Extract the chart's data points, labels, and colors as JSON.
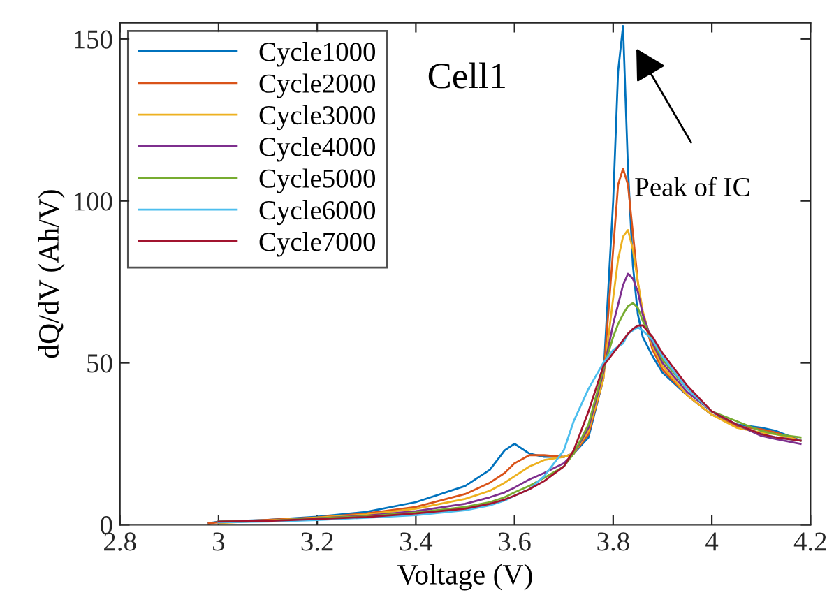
{
  "chart_data": {
    "type": "line",
    "xlabel": "Voltage (V)",
    "ylabel": "dQ/dV (Ah/V)",
    "x": [
      2.98,
      3.0,
      3.1,
      3.2,
      3.3,
      3.4,
      3.5,
      3.55,
      3.58,
      3.6,
      3.63,
      3.66,
      3.7,
      3.72,
      3.75,
      3.78,
      3.8,
      3.81,
      3.82,
      3.83,
      3.84,
      3.85,
      3.86,
      3.88,
      3.9,
      3.95,
      4.0,
      4.05,
      4.1,
      4.13,
      4.18
    ],
    "series": [
      {
        "name": "Cycle1000",
        "color": "#0072bd",
        "values": [
          0.5,
          1,
          1.5,
          2.5,
          4,
          7,
          12,
          17,
          23,
          25,
          22,
          21,
          21,
          22,
          27,
          45,
          100,
          140,
          154,
          110,
          80,
          65,
          58,
          52,
          47,
          40,
          34,
          31,
          30,
          29,
          26
        ]
      },
      {
        "name": "Cycle2000",
        "color": "#d95319",
        "values": [
          0.5,
          0.8,
          1.5,
          2.3,
          3.5,
          5.5,
          9.5,
          13,
          16,
          19,
          21.5,
          21.5,
          21,
          22,
          28,
          45,
          85,
          105,
          110,
          105,
          90,
          75,
          65,
          54,
          48,
          40,
          34,
          30.5,
          29.5,
          28.5,
          26
        ]
      },
      {
        "name": "Cycle3000",
        "color": "#edb120",
        "values": [
          null,
          0.5,
          1.3,
          2.2,
          3.2,
          5,
          8,
          10.5,
          13,
          15,
          18,
          20,
          21,
          22,
          29,
          45,
          70,
          82,
          89,
          91,
          85,
          75,
          66,
          55,
          49,
          40,
          34,
          30,
          28.5,
          28,
          26
        ]
      },
      {
        "name": "Cycle4000",
        "color": "#7e2f8e",
        "values": [
          null,
          0.8,
          1.2,
          2,
          2.8,
          4.2,
          6.5,
          8.5,
          10,
          11.5,
          14,
          16,
          19,
          22,
          30,
          47,
          62,
          68,
          74,
          77.5,
          76,
          72,
          65,
          56,
          50,
          41,
          35,
          31,
          27.5,
          26.5,
          25
        ]
      },
      {
        "name": "Cycle5000",
        "color": "#77ac30",
        "values": [
          null,
          1,
          1.2,
          2,
          2.6,
          3.8,
          5.5,
          7,
          8.5,
          10,
          12,
          14.5,
          18,
          22,
          31,
          48,
          58,
          62,
          65,
          67.5,
          68.5,
          67,
          63,
          57,
          51,
          42,
          35,
          32,
          29,
          28,
          27
        ]
      },
      {
        "name": "Cycle6000",
        "color": "#4dbeee",
        "values": [
          null,
          0.8,
          1,
          1.5,
          2.2,
          3,
          4.5,
          6,
          7.5,
          9,
          11,
          15,
          23,
          32,
          42,
          50,
          54,
          55,
          56,
          59,
          60,
          61,
          60,
          57,
          52,
          42,
          35,
          31,
          28,
          27,
          26
        ]
      },
      {
        "name": "Cycle7000",
        "color": "#a2142f",
        "values": [
          null,
          1,
          1.2,
          1.8,
          2.4,
          3.5,
          5,
          6.5,
          7.8,
          9,
          11,
          13.5,
          18,
          23,
          35,
          49,
          53,
          55,
          57,
          59,
          60.5,
          61.5,
          61.6,
          58,
          53,
          43,
          35,
          31,
          28,
          27,
          26
        ]
      }
    ],
    "annotations": [
      "Cell1",
      "Peak of IC"
    ],
    "xlim": [
      2.8,
      4.2
    ],
    "xticks": [
      2.8,
      3,
      3.2,
      3.4,
      3.6,
      3.8,
      4,
      4.2
    ],
    "ylim": [
      0,
      155
    ],
    "yticks": [
      0,
      50,
      100,
      150
    ],
    "grid": false,
    "legend": "top left",
    "marker": "none",
    "line_style": "solid"
  }
}
